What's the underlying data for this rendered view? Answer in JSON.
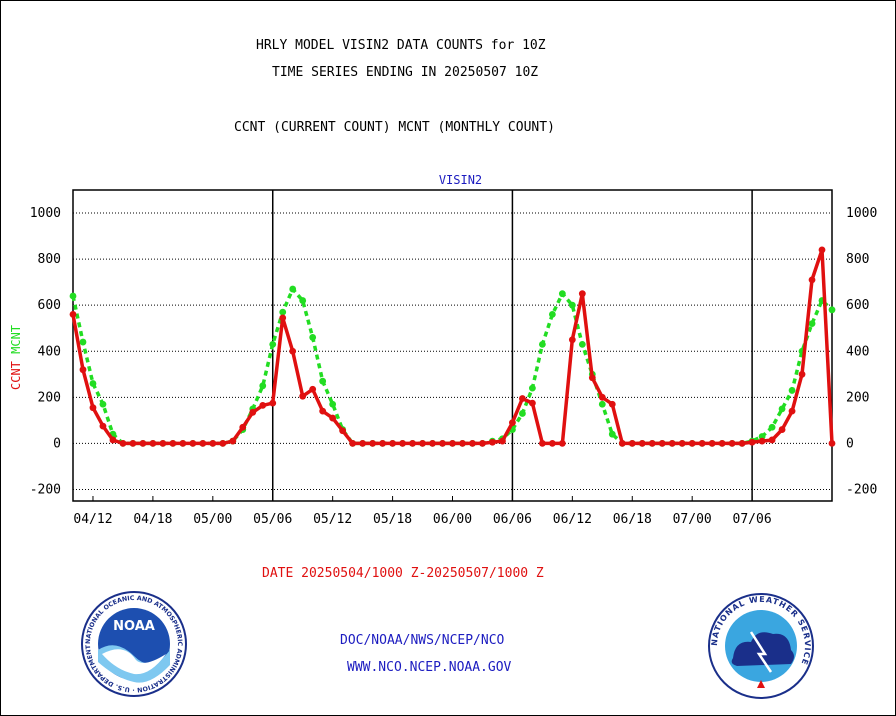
{
  "header": {
    "line1": "HRLY MODEL VISIN2 DATA COUNTS for 10Z",
    "line2": "TIME SERIES ENDING IN 20250507 10Z",
    "line3": "CCNT (CURRENT COUNT) MCNT (MONTHLY COUNT)"
  },
  "footer": {
    "date_range": "DATE 20250504/1000 Z-20250507/1000 Z",
    "org": "DOC/NOAA/NWS/NCEP/NCO",
    "url": "WWW.NCO.NCEP.NOAA.GOV"
  },
  "logos": {
    "noaa_text": "NOAA",
    "noaa_ring_text": "NATIONAL OCEANIC AND ATMOSPHERIC ADMINISTRATION · U.S. DEPARTMENT OF COMMERCE",
    "nws_ring_text": "NATIONAL WEATHER SERVICE"
  },
  "chart_data": {
    "type": "line",
    "title": "VISIN2",
    "ylabel_series": [
      "CCNT",
      "MCNT"
    ],
    "ylim": [
      -250,
      1100
    ],
    "yticks": [
      -200,
      0,
      200,
      400,
      600,
      800,
      1000
    ],
    "ytick_labels": [
      "-200",
      "0",
      "200",
      "400",
      "600",
      "800",
      "1000"
    ],
    "x_tick_labels": [
      "04/12",
      "04/18",
      "05/00",
      "05/06",
      "05/12",
      "05/18",
      "06/00",
      "06/06",
      "06/12",
      "06/18",
      "07/00",
      "07/06"
    ],
    "x_first_hour": "04/10",
    "day_boundaries": [
      "05/06",
      "06/06",
      "07/06"
    ],
    "grid": true,
    "colors": {
      "CCNT": "#e01010",
      "MCNT": "#22dd22",
      "title": "#1c1cc0"
    },
    "series": [
      {
        "name": "CCNT",
        "values": [
          560,
          320,
          155,
          75,
          15,
          0,
          0,
          0,
          0,
          0,
          0,
          0,
          0,
          0,
          0,
          0,
          10,
          70,
          135,
          165,
          175,
          545,
          400,
          205,
          235,
          140,
          110,
          55,
          0,
          0,
          0,
          0,
          0,
          0,
          0,
          0,
          0,
          0,
          0,
          0,
          0,
          0,
          5,
          10,
          90,
          195,
          175,
          0,
          0,
          0,
          450,
          650,
          285,
          200,
          170,
          0,
          0,
          0,
          0,
          0,
          0,
          0,
          0,
          0,
          0,
          0,
          0,
          0,
          5,
          10,
          15,
          60,
          140,
          300,
          710,
          840,
          0
        ]
      },
      {
        "name": "MCNT",
        "values": [
          640,
          440,
          260,
          170,
          40,
          0,
          0,
          0,
          0,
          0,
          0,
          0,
          0,
          0,
          0,
          0,
          10,
          60,
          150,
          250,
          430,
          570,
          670,
          620,
          460,
          270,
          170,
          60,
          0,
          0,
          0,
          0,
          0,
          0,
          0,
          0,
          0,
          0,
          0,
          0,
          0,
          0,
          10,
          20,
          60,
          130,
          240,
          430,
          560,
          650,
          600,
          430,
          300,
          170,
          40,
          0,
          0,
          0,
          0,
          0,
          0,
          0,
          0,
          0,
          0,
          0,
          0,
          0,
          10,
          30,
          70,
          150,
          230,
          400,
          520,
          620,
          580
        ]
      }
    ]
  }
}
